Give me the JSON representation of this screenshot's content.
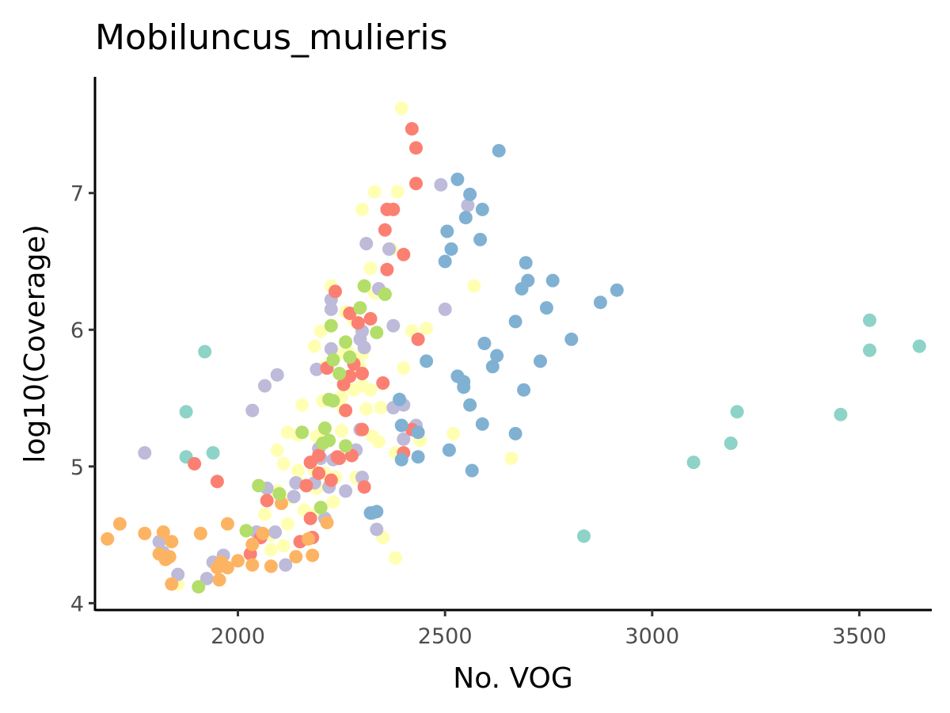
{
  "chart_data": {
    "type": "scatter",
    "title": "Mobiluncus_mulieris",
    "xlabel": "No. VOG",
    "ylabel": "log10(Coverage)",
    "xlim": [
      1655,
      3675
    ],
    "ylim": [
      3.95,
      7.85
    ],
    "x_ticks": [
      2000,
      2500,
      3000,
      3500
    ],
    "y_ticks": [
      4,
      5,
      6,
      7
    ],
    "grid": false,
    "legend": "none",
    "series": [
      {
        "color": "#8DD3C7",
        "points": [
          [
            1920,
            5.84
          ],
          [
            1875,
            5.4
          ],
          [
            1875,
            5.07
          ],
          [
            1940,
            5.1
          ],
          [
            2835,
            4.49
          ],
          [
            3100,
            5.03
          ],
          [
            3190,
            5.17
          ],
          [
            3205,
            5.4
          ],
          [
            3455,
            5.38
          ],
          [
            3525,
            5.85
          ],
          [
            3525,
            6.07
          ],
          [
            3645,
            5.88
          ]
        ]
      },
      {
        "color": "#FFFFB3",
        "points": [
          [
            2395,
            7.62
          ],
          [
            2330,
            7.01
          ],
          [
            2385,
            7.01
          ],
          [
            2300,
            6.88
          ],
          [
            2370,
            6.59
          ],
          [
            2320,
            6.45
          ],
          [
            2225,
            6.32
          ],
          [
            2305,
            6.32
          ],
          [
            2330,
            6.27
          ],
          [
            2570,
            6.32
          ],
          [
            2260,
            6.13
          ],
          [
            2280,
            6.07
          ],
          [
            2200,
            5.99
          ],
          [
            2420,
            5.99
          ],
          [
            2455,
            6.01
          ],
          [
            2185,
            5.88
          ],
          [
            2240,
            5.82
          ],
          [
            2265,
            5.84
          ],
          [
            2400,
            5.72
          ],
          [
            2295,
            5.72
          ],
          [
            2210,
            5.73
          ],
          [
            2300,
            5.59
          ],
          [
            2280,
            5.56
          ],
          [
            2320,
            5.56
          ],
          [
            2155,
            5.45
          ],
          [
            2205,
            5.48
          ],
          [
            2255,
            5.42
          ],
          [
            2310,
            5.42
          ],
          [
            2345,
            5.43
          ],
          [
            2120,
            5.25
          ],
          [
            2145,
            5.23
          ],
          [
            2190,
            5.22
          ],
          [
            2210,
            5.2
          ],
          [
            2250,
            5.26
          ],
          [
            2325,
            5.22
          ],
          [
            2340,
            5.18
          ],
          [
            2380,
            5.1
          ],
          [
            2440,
            5.19
          ],
          [
            2520,
            5.24
          ],
          [
            2660,
            5.06
          ],
          [
            2095,
            5.12
          ],
          [
            2110,
            5.02
          ],
          [
            2145,
            4.97
          ],
          [
            2185,
            4.97
          ],
          [
            2210,
            4.95
          ],
          [
            2235,
            4.92
          ],
          [
            2285,
            4.92
          ],
          [
            2145,
            4.88
          ],
          [
            2165,
            4.86
          ],
          [
            2190,
            4.84
          ],
          [
            2220,
            4.86
          ],
          [
            2095,
            4.82
          ],
          [
            2130,
            4.77
          ],
          [
            2160,
            4.68
          ],
          [
            2180,
            4.64
          ],
          [
            2230,
            4.74
          ],
          [
            2065,
            4.65
          ],
          [
            2120,
            4.58
          ],
          [
            2080,
            4.5
          ],
          [
            2110,
            4.42
          ],
          [
            2080,
            4.39
          ],
          [
            2350,
            4.48
          ],
          [
            2380,
            4.33
          ],
          [
            1855,
            4.14
          ],
          [
            2300,
            5.82
          ],
          [
            2250,
            5.51
          ]
        ]
      },
      {
        "color": "#BEBADA",
        "points": [
          [
            2490,
            7.06
          ],
          [
            2555,
            6.91
          ],
          [
            2310,
            6.63
          ],
          [
            2365,
            6.59
          ],
          [
            2225,
            6.22
          ],
          [
            2225,
            6.15
          ],
          [
            2340,
            6.3
          ],
          [
            2500,
            6.15
          ],
          [
            2375,
            6.03
          ],
          [
            2300,
            5.99
          ],
          [
            2295,
            5.93
          ],
          [
            2305,
            5.87
          ],
          [
            2225,
            5.86
          ],
          [
            2190,
            5.71
          ],
          [
            2095,
            5.67
          ],
          [
            2065,
            5.59
          ],
          [
            2390,
            5.49
          ],
          [
            2400,
            5.45
          ],
          [
            2430,
            5.3
          ],
          [
            2295,
            5.27
          ],
          [
            2035,
            5.41
          ],
          [
            2400,
            5.2
          ],
          [
            2285,
            5.12
          ],
          [
            2195,
            5.13
          ],
          [
            2200,
            5.06
          ],
          [
            2230,
            5.05
          ],
          [
            2300,
            4.92
          ],
          [
            2260,
            4.82
          ],
          [
            2140,
            4.88
          ],
          [
            2185,
            4.88
          ],
          [
            2070,
            4.84
          ],
          [
            2135,
            4.78
          ],
          [
            2220,
            4.85
          ],
          [
            1775,
            5.1
          ],
          [
            1810,
            4.45
          ],
          [
            1820,
            4.37
          ],
          [
            1830,
            4.33
          ],
          [
            1855,
            4.21
          ],
          [
            1940,
            4.3
          ],
          [
            1955,
            4.27
          ],
          [
            1965,
            4.35
          ],
          [
            1925,
            4.18
          ],
          [
            2045,
            4.52
          ],
          [
            2090,
            4.52
          ],
          [
            2115,
            4.28
          ],
          [
            2335,
            4.54
          ],
          [
            2325,
            4.66
          ],
          [
            2375,
            5.43
          ],
          [
            2210,
            4.62
          ]
        ]
      },
      {
        "color": "#FB8072",
        "points": [
          [
            2420,
            7.47
          ],
          [
            2430,
            7.33
          ],
          [
            2430,
            7.07
          ],
          [
            2360,
            6.88
          ],
          [
            2375,
            6.88
          ],
          [
            2355,
            6.73
          ],
          [
            2400,
            6.55
          ],
          [
            2360,
            6.44
          ],
          [
            2235,
            6.28
          ],
          [
            2270,
            6.12
          ],
          [
            2290,
            6.05
          ],
          [
            2435,
            5.93
          ],
          [
            2320,
            6.08
          ],
          [
            2215,
            5.72
          ],
          [
            2270,
            5.66
          ],
          [
            2280,
            5.75
          ],
          [
            2300,
            5.68
          ],
          [
            2255,
            5.6
          ],
          [
            2350,
            5.61
          ],
          [
            2260,
            5.41
          ],
          [
            2300,
            5.27
          ],
          [
            2420,
            5.27
          ],
          [
            2400,
            5.1
          ],
          [
            2195,
            5.08
          ],
          [
            2240,
            5.07
          ],
          [
            2275,
            5.08
          ],
          [
            2245,
            5.06
          ],
          [
            2175,
            5.03
          ],
          [
            1895,
            5.02
          ],
          [
            2195,
            4.95
          ],
          [
            2225,
            4.9
          ],
          [
            1950,
            4.89
          ],
          [
            2305,
            4.85
          ],
          [
            2165,
            4.86
          ],
          [
            2070,
            4.75
          ],
          [
            2175,
            4.62
          ],
          [
            2180,
            4.48
          ],
          [
            2055,
            4.48
          ],
          [
            2030,
            4.36
          ],
          [
            2150,
            4.45
          ]
        ]
      },
      {
        "color": "#80B1D3",
        "points": [
          [
            2630,
            7.31
          ],
          [
            2530,
            7.1
          ],
          [
            2560,
            6.99
          ],
          [
            2590,
            6.88
          ],
          [
            2550,
            6.82
          ],
          [
            2505,
            6.72
          ],
          [
            2585,
            6.66
          ],
          [
            2515,
            6.59
          ],
          [
            2500,
            6.5
          ],
          [
            2695,
            6.49
          ],
          [
            2700,
            6.36
          ],
          [
            2685,
            6.3
          ],
          [
            2760,
            6.36
          ],
          [
            2915,
            6.29
          ],
          [
            2875,
            6.2
          ],
          [
            2745,
            6.16
          ],
          [
            2670,
            6.06
          ],
          [
            2805,
            5.93
          ],
          [
            2595,
            5.9
          ],
          [
            2625,
            5.81
          ],
          [
            2615,
            5.73
          ],
          [
            2730,
            5.77
          ],
          [
            2455,
            5.77
          ],
          [
            2530,
            5.66
          ],
          [
            2545,
            5.62
          ],
          [
            2545,
            5.58
          ],
          [
            2690,
            5.56
          ],
          [
            2390,
            5.49
          ],
          [
            2560,
            5.45
          ],
          [
            2395,
            5.3
          ],
          [
            2590,
            5.31
          ],
          [
            2435,
            5.25
          ],
          [
            2670,
            5.24
          ],
          [
            2435,
            5.07
          ],
          [
            2395,
            5.05
          ],
          [
            2510,
            5.12
          ],
          [
            2565,
            4.97
          ],
          [
            2320,
            4.66
          ],
          [
            2335,
            4.67
          ]
        ]
      },
      {
        "color": "#FDB462",
        "points": [
          [
            1685,
            4.47
          ],
          [
            1715,
            4.58
          ],
          [
            1775,
            4.51
          ],
          [
            1820,
            4.52
          ],
          [
            1840,
            4.45
          ],
          [
            1810,
            4.36
          ],
          [
            1825,
            4.32
          ],
          [
            1835,
            4.34
          ],
          [
            1840,
            4.14
          ],
          [
            1910,
            4.51
          ],
          [
            1975,
            4.58
          ],
          [
            2035,
            4.43
          ],
          [
            2060,
            4.51
          ],
          [
            2000,
            4.31
          ],
          [
            1960,
            4.3
          ],
          [
            1950,
            4.26
          ],
          [
            1975,
            4.26
          ],
          [
            2035,
            4.28
          ],
          [
            1955,
            4.17
          ],
          [
            2080,
            4.27
          ],
          [
            2105,
            4.73
          ],
          [
            2140,
            4.34
          ],
          [
            2180,
            4.35
          ],
          [
            2170,
            4.47
          ],
          [
            2215,
            4.59
          ]
        ]
      },
      {
        "color": "#B3DE69",
        "points": [
          [
            2305,
            6.32
          ],
          [
            2355,
            6.26
          ],
          [
            2295,
            6.16
          ],
          [
            2225,
            6.03
          ],
          [
            2335,
            5.98
          ],
          [
            2260,
            5.91
          ],
          [
            2270,
            5.8
          ],
          [
            2230,
            5.78
          ],
          [
            2245,
            5.68
          ],
          [
            2220,
            5.49
          ],
          [
            2230,
            5.48
          ],
          [
            2155,
            5.25
          ],
          [
            2210,
            5.28
          ],
          [
            2260,
            5.15
          ],
          [
            2220,
            5.19
          ],
          [
            2205,
            5.17
          ],
          [
            2050,
            4.86
          ],
          [
            2100,
            4.8
          ],
          [
            2200,
            4.7
          ],
          [
            2020,
            4.53
          ],
          [
            1905,
            4.12
          ],
          [
            2355,
            6.26
          ]
        ]
      }
    ]
  }
}
